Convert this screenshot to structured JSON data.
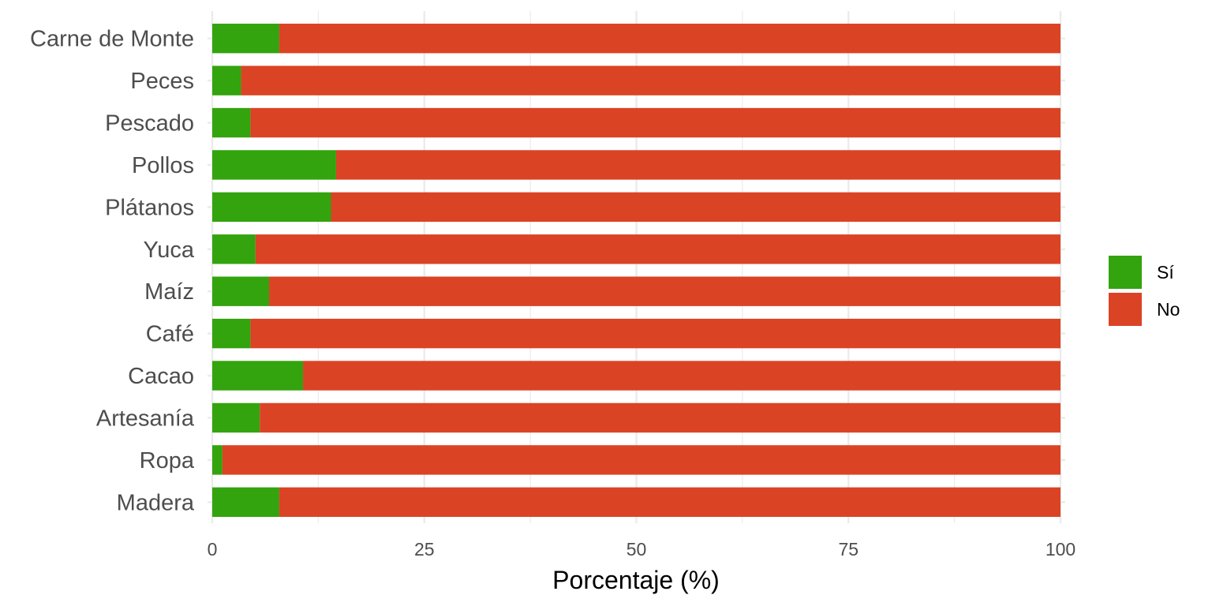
{
  "chart_data": {
    "type": "bar",
    "orientation": "horizontal",
    "stacked": true,
    "categories": [
      "Carne de Monte",
      "Peces",
      "Pescado",
      "Pollos",
      "Plátanos",
      "Yuca",
      "Maíz",
      "Café",
      "Cacao",
      "Artesanía",
      "Ropa",
      "Madera"
    ],
    "series": [
      {
        "name": "Sí",
        "color": "#33a30e",
        "values": [
          7.9,
          3.4,
          4.5,
          14.6,
          14.0,
          5.1,
          6.7,
          4.5,
          10.7,
          5.6,
          1.2,
          7.9
        ]
      },
      {
        "name": "No",
        "color": "#db4325",
        "values": [
          92.1,
          96.6,
          95.5,
          85.4,
          86.0,
          94.9,
          93.3,
          95.5,
          89.3,
          94.4,
          98.8,
          92.1
        ]
      }
    ],
    "xlabel": "Porcentaje (%)",
    "ylabel": "",
    "xlim": [
      0,
      100
    ],
    "xticks": [
      0,
      25,
      50,
      75,
      100
    ],
    "xtick_labels": [
      "0",
      "25",
      "50",
      "75",
      "100"
    ],
    "grid": true,
    "legend_position": "right"
  }
}
